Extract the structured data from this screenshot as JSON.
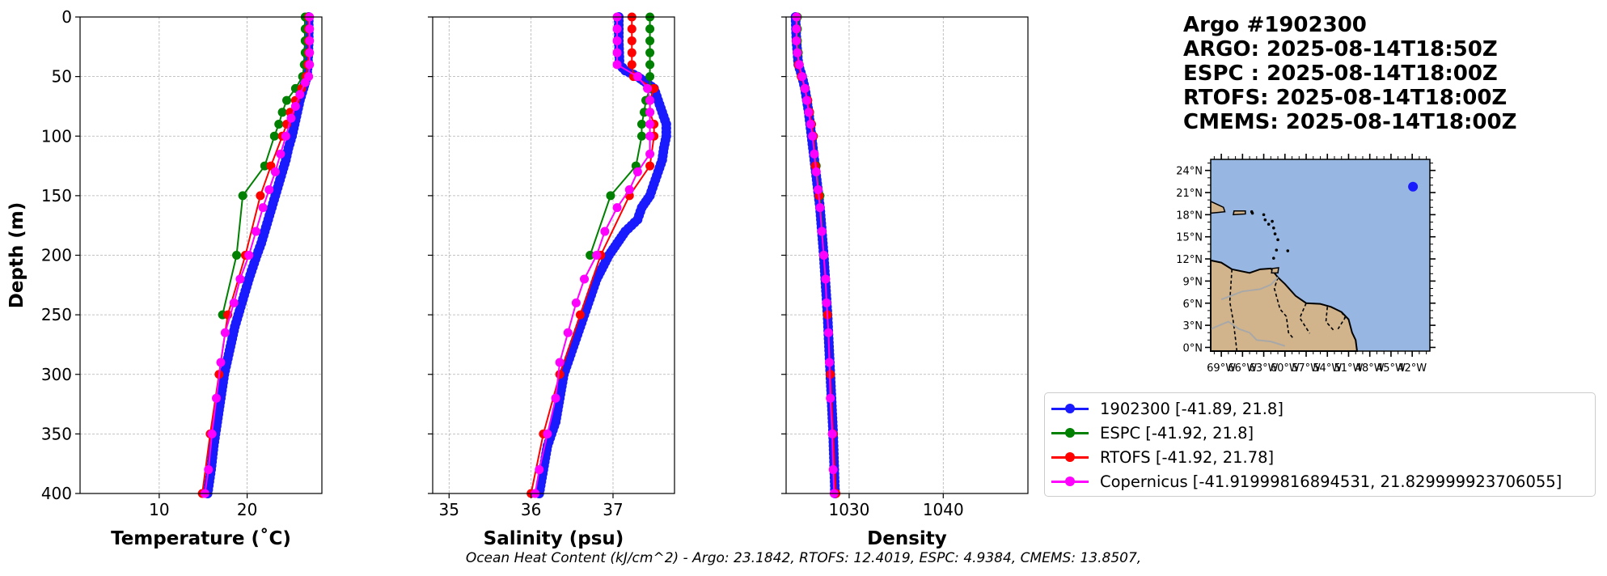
{
  "info": {
    "line1": "Argo #1902300",
    "line2": "ARGO: 2025-08-14T18:50Z",
    "line3": "ESPC : 2025-08-14T18:00Z",
    "line4": "RTOFS: 2025-08-14T18:00Z",
    "line5": "CMEMS: 2025-08-14T18:00Z"
  },
  "footer": "Ocean Heat Content (kJ/cm^2) - Argo: 23.1842,  RTOFS: 12.4019,  ESPC: 4.9384,  CMEMS: 13.8507,",
  "colors": {
    "argo": "#1a1aff",
    "espc": "#008000",
    "rtofs": "#ff0000",
    "cmems": "#ff00ff",
    "ocean": "#97b6e1",
    "land": "#d2b48c",
    "grid": "#b0b0b0"
  },
  "legend": [
    {
      "label": "1902300 [-41.89, 21.8]",
      "color": "#1a1aff"
    },
    {
      "label": "ESPC [-41.92, 21.8]",
      "color": "#008000"
    },
    {
      "label": "RTOFS [-41.92, 21.78]",
      "color": "#ff0000"
    },
    {
      "label": "Copernicus [-41.91999816894531, 21.829999923706055]",
      "color": "#ff00ff"
    }
  ],
  "chart_data": [
    {
      "type": "line",
      "title": "",
      "xlabel": "Temperature (˚C)",
      "ylabel": "Depth (m)",
      "xlim": [
        1,
        28.5
      ],
      "ylim": [
        400,
        0
      ],
      "xticks": [
        10,
        20
      ],
      "yticks": [
        0,
        50,
        100,
        150,
        200,
        250,
        300,
        350,
        400
      ],
      "grid": true,
      "series": [
        {
          "name": "1902300",
          "color": "#1a1aff",
          "dense": true,
          "depth": [
            0,
            20,
            40,
            50,
            55,
            60,
            70,
            80,
            90,
            100,
            110,
            120,
            130,
            140,
            150,
            160,
            170,
            180,
            190,
            200,
            220,
            240,
            260,
            280,
            300,
            320,
            340,
            360,
            380,
            400
          ],
          "values": [
            27.0,
            27.0,
            26.9,
            26.8,
            26.6,
            26.4,
            26.0,
            25.7,
            25.4,
            25.1,
            24.7,
            24.4,
            24.0,
            23.6,
            23.2,
            22.8,
            22.4,
            22.0,
            21.6,
            21.1,
            20.2,
            19.4,
            18.6,
            18.0,
            17.4,
            17.0,
            16.6,
            16.2,
            15.9,
            15.5
          ]
        },
        {
          "name": "ESPC",
          "color": "#008000",
          "depth": [
            0,
            10,
            20,
            30,
            40,
            50,
            60,
            70,
            80,
            90,
            100,
            125,
            150,
            200,
            250
          ],
          "values": [
            26.6,
            26.6,
            26.6,
            26.6,
            26.5,
            26.3,
            25.5,
            24.5,
            24.0,
            23.6,
            23.1,
            22.0,
            19.5,
            18.8,
            17.2
          ]
        },
        {
          "name": "RTOFS",
          "color": "#ff0000",
          "depth": [
            0,
            10,
            20,
            30,
            40,
            50,
            60,
            70,
            80,
            90,
            100,
            125,
            150,
            200,
            250,
            300,
            350,
            400
          ],
          "values": [
            27.0,
            27.0,
            27.0,
            27.0,
            26.9,
            26.7,
            26.2,
            25.5,
            24.9,
            24.5,
            24.0,
            22.7,
            21.5,
            19.8,
            17.8,
            16.8,
            15.8,
            14.9
          ]
        },
        {
          "name": "Copernicus",
          "color": "#ff00ff",
          "depth": [
            0,
            10,
            20,
            30,
            40,
            50,
            55,
            65,
            75,
            85,
            100,
            115,
            130,
            145,
            160,
            180,
            200,
            220,
            240,
            265,
            290,
            320,
            350,
            380,
            400
          ],
          "values": [
            27.1,
            27.1,
            27.1,
            27.1,
            27.1,
            27.0,
            26.6,
            26.0,
            25.5,
            25.0,
            24.4,
            23.8,
            23.2,
            22.5,
            21.8,
            21.0,
            20.2,
            19.2,
            18.5,
            17.5,
            17.0,
            16.5,
            16.0,
            15.6,
            15.2
          ]
        }
      ]
    },
    {
      "type": "line",
      "xlabel": "Salinity (psu)",
      "xlim": [
        34.8,
        37.75
      ],
      "ylim": [
        400,
        0
      ],
      "xticks": [
        35,
        36,
        37
      ],
      "grid": true,
      "series": [
        {
          "name": "1902300",
          "color": "#1a1aff",
          "dense": true,
          "depth": [
            0,
            20,
            40,
            45,
            50,
            55,
            60,
            70,
            80,
            90,
            100,
            110,
            120,
            130,
            140,
            150,
            160,
            170,
            180,
            190,
            200,
            220,
            240,
            260,
            280,
            300,
            320,
            340,
            360,
            380,
            400
          ],
          "values": [
            37.07,
            37.07,
            37.08,
            37.15,
            37.3,
            37.4,
            37.5,
            37.55,
            37.6,
            37.65,
            37.65,
            37.62,
            37.6,
            37.55,
            37.5,
            37.45,
            37.35,
            37.3,
            37.15,
            37.05,
            36.95,
            36.8,
            36.7,
            36.6,
            36.5,
            36.4,
            36.35,
            36.3,
            36.2,
            36.15,
            36.1
          ]
        },
        {
          "name": "ESPC",
          "color": "#008000",
          "depth": [
            0,
            10,
            20,
            30,
            40,
            50,
            60,
            70,
            80,
            90,
            100,
            125,
            150,
            200
          ],
          "values": [
            37.45,
            37.45,
            37.45,
            37.45,
            37.45,
            37.45,
            37.45,
            37.4,
            37.38,
            37.35,
            37.35,
            37.28,
            36.97,
            36.72
          ]
        },
        {
          "name": "RTOFS",
          "color": "#ff0000",
          "depth": [
            0,
            10,
            20,
            30,
            40,
            50,
            60,
            70,
            80,
            90,
            100,
            125,
            150,
            200,
            250,
            300,
            350,
            400
          ],
          "values": [
            37.23,
            37.23,
            37.23,
            37.23,
            37.23,
            37.25,
            37.5,
            37.45,
            37.45,
            37.5,
            37.5,
            37.45,
            37.2,
            36.85,
            36.6,
            36.35,
            36.15,
            36.0
          ]
        },
        {
          "name": "Copernicus",
          "color": "#ff00ff",
          "depth": [
            0,
            10,
            20,
            30,
            40,
            50,
            60,
            70,
            80,
            90,
            100,
            115,
            130,
            145,
            160,
            180,
            200,
            220,
            240,
            265,
            290,
            320,
            350,
            380,
            400
          ],
          "values": [
            37.05,
            37.05,
            37.05,
            37.05,
            37.05,
            37.3,
            37.42,
            37.45,
            37.45,
            37.45,
            37.45,
            37.45,
            37.3,
            37.2,
            37.05,
            36.9,
            36.8,
            36.65,
            36.55,
            36.45,
            36.35,
            36.3,
            36.2,
            36.1,
            36.05
          ]
        }
      ]
    },
    {
      "type": "line",
      "xlabel": "Density",
      "xlim": [
        1023.3,
        1049.0
      ],
      "ylim": [
        400,
        0
      ],
      "xticks": [
        1030,
        1040
      ],
      "grid": true,
      "series": [
        {
          "name": "1902300",
          "color": "#1a1aff",
          "dense": true,
          "depth": [
            0,
            20,
            40,
            50,
            60,
            80,
            100,
            120,
            140,
            160,
            180,
            200,
            250,
            300,
            350,
            400
          ],
          "values": [
            1024.3,
            1024.4,
            1024.6,
            1025.0,
            1025.3,
            1025.7,
            1026.0,
            1026.3,
            1026.6,
            1026.9,
            1027.1,
            1027.3,
            1027.7,
            1028.0,
            1028.3,
            1028.5
          ]
        },
        {
          "name": "ESPC",
          "color": "#008000",
          "depth": [
            0,
            10,
            20,
            30,
            40,
            50,
            60,
            70,
            80,
            90,
            100,
            125,
            150,
            200
          ],
          "values": [
            1024.5,
            1024.5,
            1024.5,
            1024.6,
            1024.7,
            1025.0,
            1025.3,
            1025.6,
            1025.8,
            1026.0,
            1026.2,
            1026.5,
            1026.9,
            1027.3
          ]
        },
        {
          "name": "RTOFS",
          "color": "#ff0000",
          "depth": [
            0,
            10,
            20,
            30,
            40,
            50,
            60,
            70,
            80,
            90,
            100,
            125,
            150,
            200,
            250,
            300,
            350,
            400
          ],
          "values": [
            1024.4,
            1024.4,
            1024.4,
            1024.5,
            1024.6,
            1024.9,
            1025.3,
            1025.6,
            1025.8,
            1026.0,
            1026.2,
            1026.4,
            1026.8,
            1027.3,
            1027.7,
            1028.0,
            1028.3,
            1028.6
          ]
        },
        {
          "name": "Copernicus",
          "color": "#ff00ff",
          "depth": [
            0,
            10,
            20,
            30,
            40,
            50,
            60,
            70,
            80,
            90,
            100,
            115,
            130,
            145,
            160,
            180,
            200,
            220,
            240,
            265,
            290,
            320,
            350,
            380,
            400
          ],
          "values": [
            1024.4,
            1024.4,
            1024.4,
            1024.5,
            1024.7,
            1025.0,
            1025.3,
            1025.5,
            1025.7,
            1025.9,
            1026.1,
            1026.3,
            1026.5,
            1026.7,
            1026.9,
            1027.1,
            1027.3,
            1027.5,
            1027.6,
            1027.8,
            1027.9,
            1028.0,
            1028.2,
            1028.3,
            1028.4
          ]
        }
      ]
    },
    {
      "type": "map",
      "xticks": [
        "69°W",
        "66°W",
        "63°W",
        "60°W",
        "57°W",
        "54°W",
        "51°W",
        "48°W",
        "45°W",
        "42°W"
      ],
      "yticks": [
        "0°N",
        "3°N",
        "6°N",
        "9°N",
        "12°N",
        "15°N",
        "18°N",
        "21°N",
        "24°N"
      ],
      "lon_range": [
        -70.5,
        -39.5
      ],
      "lat_range": [
        -0.5,
        25.5
      ],
      "float_position": {
        "lon": -41.89,
        "lat": 21.8
      }
    }
  ]
}
